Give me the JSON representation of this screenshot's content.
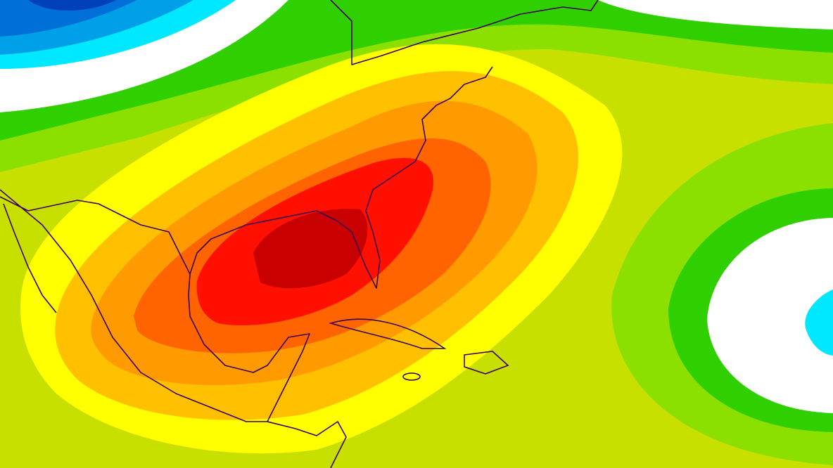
{
  "map": {
    "palette": {
      "background": "#c8e000",
      "green_light": "#8ce000",
      "green": "#30d000",
      "white": "#ffffff",
      "cyan": "#00e8ff",
      "blue_light": "#00a0e8",
      "blue": "#0070d8",
      "blue_dark": "#0040b8",
      "yellow": "#ffff00",
      "amber": "#ffc000",
      "orange": "#ff9a00",
      "orange_dark": "#ff6400",
      "red": "#ff1000",
      "red_dark": "#c80000",
      "coastline": "#3a0050"
    }
  }
}
